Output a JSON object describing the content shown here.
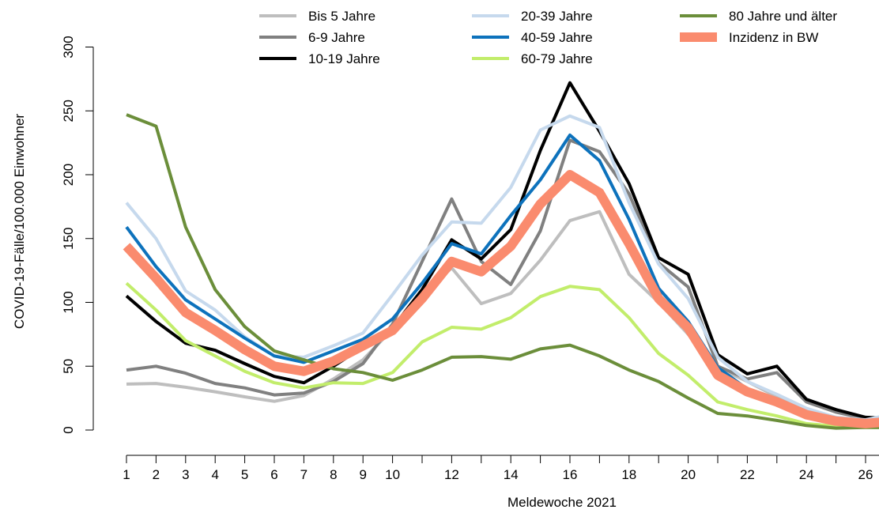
{
  "chart_data": {
    "type": "line",
    "title": "",
    "xlabel": "Meldewoche 2021",
    "ylabel": "COVID-19-Fälle/100.000 Einwohner",
    "xlim": [
      1,
      27
    ],
    "ylim": [
      0,
      300
    ],
    "x_ticks": [
      1,
      2,
      3,
      4,
      5,
      6,
      7,
      8,
      9,
      10,
      12,
      14,
      16,
      18,
      20,
      22,
      24,
      26
    ],
    "y_ticks": [
      0,
      50,
      100,
      150,
      200,
      250,
      300
    ],
    "grid": false,
    "legend_position": "top",
    "x": [
      1,
      2,
      3,
      4,
      5,
      6,
      7,
      8,
      9,
      10,
      11,
      12,
      13,
      14,
      15,
      16,
      17,
      18,
      19,
      20,
      21,
      22,
      23,
      24,
      25,
      26,
      27
    ],
    "series": [
      {
        "name": "Bis 5 Jahre",
        "color": "#bebebe",
        "width": 4,
        "values": [
          36,
          36.5,
          33.5,
          30,
          26,
          22.5,
          27,
          40,
          55,
          79,
          105,
          127,
          99,
          107,
          133,
          164,
          171,
          122,
          100,
          75,
          49,
          38,
          26,
          14,
          7,
          5,
          7
        ]
      },
      {
        "name": "6-9 Jahre",
        "color": "#808080",
        "width": 4,
        "values": [
          47,
          50,
          44.5,
          36.5,
          33,
          27.5,
          29,
          38,
          52,
          83,
          132,
          181,
          132,
          114,
          156,
          227,
          218,
          185,
          131,
          112,
          50,
          40,
          45,
          22,
          14,
          9,
          11
        ]
      },
      {
        "name": "10-19 Jahre",
        "color": "#000000",
        "width": 4,
        "values": [
          105,
          85,
          68,
          62.5,
          52,
          42,
          37,
          50,
          65,
          80,
          110,
          149,
          134,
          157,
          219,
          272,
          234,
          193,
          135,
          122,
          59,
          44,
          50,
          24,
          16,
          10,
          9
        ]
      },
      {
        "name": "20-39 Jahre",
        "color": "#c6d9ed",
        "width": 4,
        "values": [
          178,
          150,
          109,
          94,
          73,
          58,
          57,
          66,
          76,
          106,
          137,
          163,
          162,
          190,
          235,
          246,
          237,
          178,
          130,
          103,
          57,
          38,
          28,
          17,
          10,
          8,
          13
        ]
      },
      {
        "name": "40-59 Jahre",
        "color": "#0d72bc",
        "width": 4,
        "values": [
          159,
          128,
          102,
          87,
          72,
          58,
          53,
          62,
          71,
          87,
          115,
          146,
          138,
          168,
          196,
          231,
          211,
          165,
          111,
          85,
          49,
          32,
          24,
          13,
          7,
          5,
          6
        ]
      },
      {
        "name": "60-79 Jahre",
        "color": "#c2ed6b",
        "width": 4,
        "values": [
          115,
          94,
          70,
          58,
          46,
          37,
          33,
          37,
          36.5,
          45,
          69,
          80.5,
          79,
          88,
          104.5,
          112.5,
          110,
          88,
          60,
          43,
          22,
          16,
          11,
          5,
          3,
          2,
          2
        ]
      },
      {
        "name": "80 Jahre und älter",
        "color": "#6b8e3a",
        "width": 4,
        "values": [
          247,
          238,
          159,
          110,
          81,
          62,
          55,
          48,
          45,
          39,
          47,
          57,
          57.5,
          55.5,
          63.5,
          66.5,
          58,
          47,
          38,
          25,
          13,
          11,
          7.5,
          3.5,
          1.5,
          2,
          2
        ]
      },
      {
        "name": "Inzidenz in BW",
        "color": "#fa8b6e",
        "width": 12,
        "values": [
          144,
          119,
          92,
          78,
          63,
          50,
          46,
          54,
          66,
          78,
          103,
          132,
          124,
          144,
          177,
          200,
          186,
          146,
          103,
          80,
          43,
          30,
          22,
          12,
          7,
          5,
          7
        ]
      }
    ]
  }
}
